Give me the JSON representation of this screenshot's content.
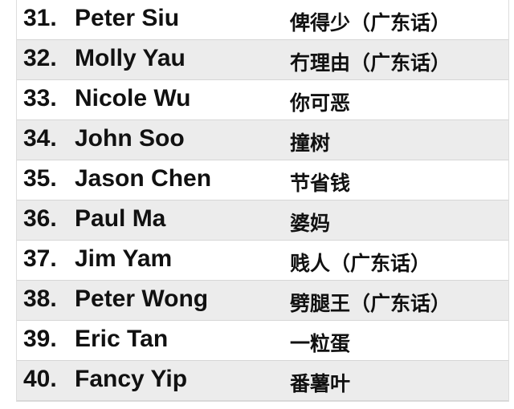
{
  "rows": [
    {
      "num": "31.",
      "name": "Peter Siu",
      "chinese": "俾得少（广东话）"
    },
    {
      "num": "32.",
      "name": "Molly Yau",
      "chinese": "冇理由（广东话）"
    },
    {
      "num": "33.",
      "name": "Nicole Wu",
      "chinese": "你可恶"
    },
    {
      "num": "34.",
      "name": "John Soo",
      "chinese": "撞树"
    },
    {
      "num": "35.",
      "name": "Jason Chen",
      "chinese": "节省钱"
    },
    {
      "num": "36.",
      "name": "Paul Ma",
      "chinese": "婆妈"
    },
    {
      "num": "37.",
      "name": "Jim Yam",
      "chinese": "贱人（广东话）"
    },
    {
      "num": "38.",
      "name": "Peter Wong",
      "chinese": "劈腿王（广东话）"
    },
    {
      "num": "39.",
      "name": "Eric Tan",
      "chinese": "一粒蛋"
    },
    {
      "num": "40.",
      "name": "Fancy Yip",
      "chinese": "番薯叶"
    }
  ]
}
